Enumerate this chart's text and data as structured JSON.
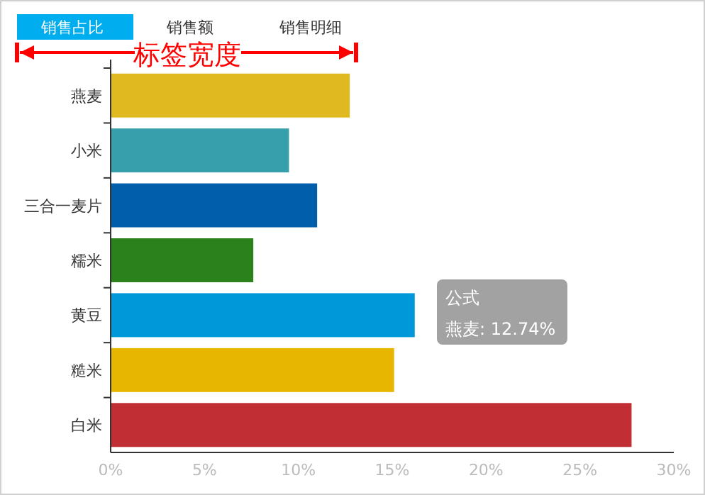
{
  "chart_data": {
    "type": "bar",
    "orientation": "horizontal",
    "categories": [
      "燕麦",
      "小米",
      "三合一麦片",
      "糯米",
      "黄豆",
      "糙米",
      "白米"
    ],
    "values": [
      12.74,
      9.5,
      11.0,
      7.6,
      16.2,
      15.1,
      27.75
    ],
    "colors": [
      "#e0b820",
      "#379eab",
      "#005eaa",
      "#2b821d",
      "#0098d9",
      "#e6b600",
      "#c12e34"
    ],
    "xlim": [
      0,
      30
    ],
    "xticks": [
      {
        "value": 0,
        "label": "0%"
      },
      {
        "value": 5,
        "label": "5%"
      },
      {
        "value": 10,
        "label": "10%"
      },
      {
        "value": 15,
        "label": "15%"
      },
      {
        "value": 20,
        "label": "20%"
      },
      {
        "value": 25,
        "label": "25%"
      },
      {
        "value": 30,
        "label": "30%"
      }
    ],
    "grid": false,
    "annotations": [
      "销售占比",
      "销售额",
      "销售明细",
      "标签宽度",
      "公式",
      "燕麦: 12.74%"
    ]
  }
}
